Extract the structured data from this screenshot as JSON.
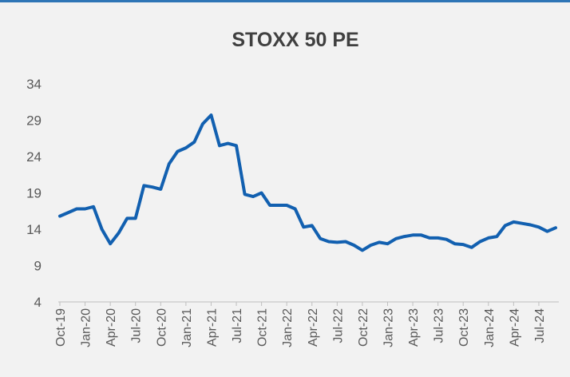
{
  "chart_data": {
    "type": "line",
    "title": "STOXX 50 PE",
    "categories": [
      "Oct-19",
      null,
      null,
      "Jan-20",
      null,
      null,
      "Apr-20",
      null,
      null,
      "Jul-20",
      null,
      null,
      "Oct-20",
      null,
      null,
      "Jan-21",
      null,
      null,
      "Apr-21",
      null,
      null,
      "Jul-21",
      null,
      null,
      "Oct-21",
      null,
      null,
      "Jan-22",
      null,
      null,
      "Apr-22",
      null,
      null,
      "Jul-22",
      null,
      null,
      "Oct-22",
      null,
      null,
      "Jan-23",
      null,
      null,
      "Apr-23",
      null,
      null,
      "Jul-23",
      null,
      null,
      "Oct-23",
      null,
      null,
      "Jan-24",
      null,
      null,
      "Apr-24",
      null,
      null,
      "Jul-24",
      null,
      null
    ],
    "values": [
      15.8,
      16.3,
      16.8,
      16.8,
      17.1,
      14.0,
      12.0,
      13.5,
      15.5,
      15.5,
      20.0,
      19.8,
      19.5,
      23.0,
      24.7,
      25.2,
      26.0,
      28.5,
      29.7,
      25.5,
      25.8,
      25.5,
      18.8,
      18.5,
      19.0,
      17.3,
      17.3,
      17.3,
      16.8,
      14.3,
      14.5,
      12.7,
      12.3,
      12.2,
      12.3,
      11.8,
      11.1,
      11.8,
      12.2,
      12.0,
      12.7,
      13.0,
      13.2,
      13.2,
      12.8,
      12.8,
      12.6,
      12.0,
      11.9,
      11.5,
      12.3,
      12.8,
      13.0,
      14.5,
      15.0,
      14.8,
      14.6,
      14.3,
      13.7,
      14.2
    ],
    "color": "#1260b0",
    "ylim": [
      4,
      34
    ],
    "yticks": [
      4,
      9,
      14,
      19,
      24,
      29,
      34
    ],
    "grid": false
  }
}
